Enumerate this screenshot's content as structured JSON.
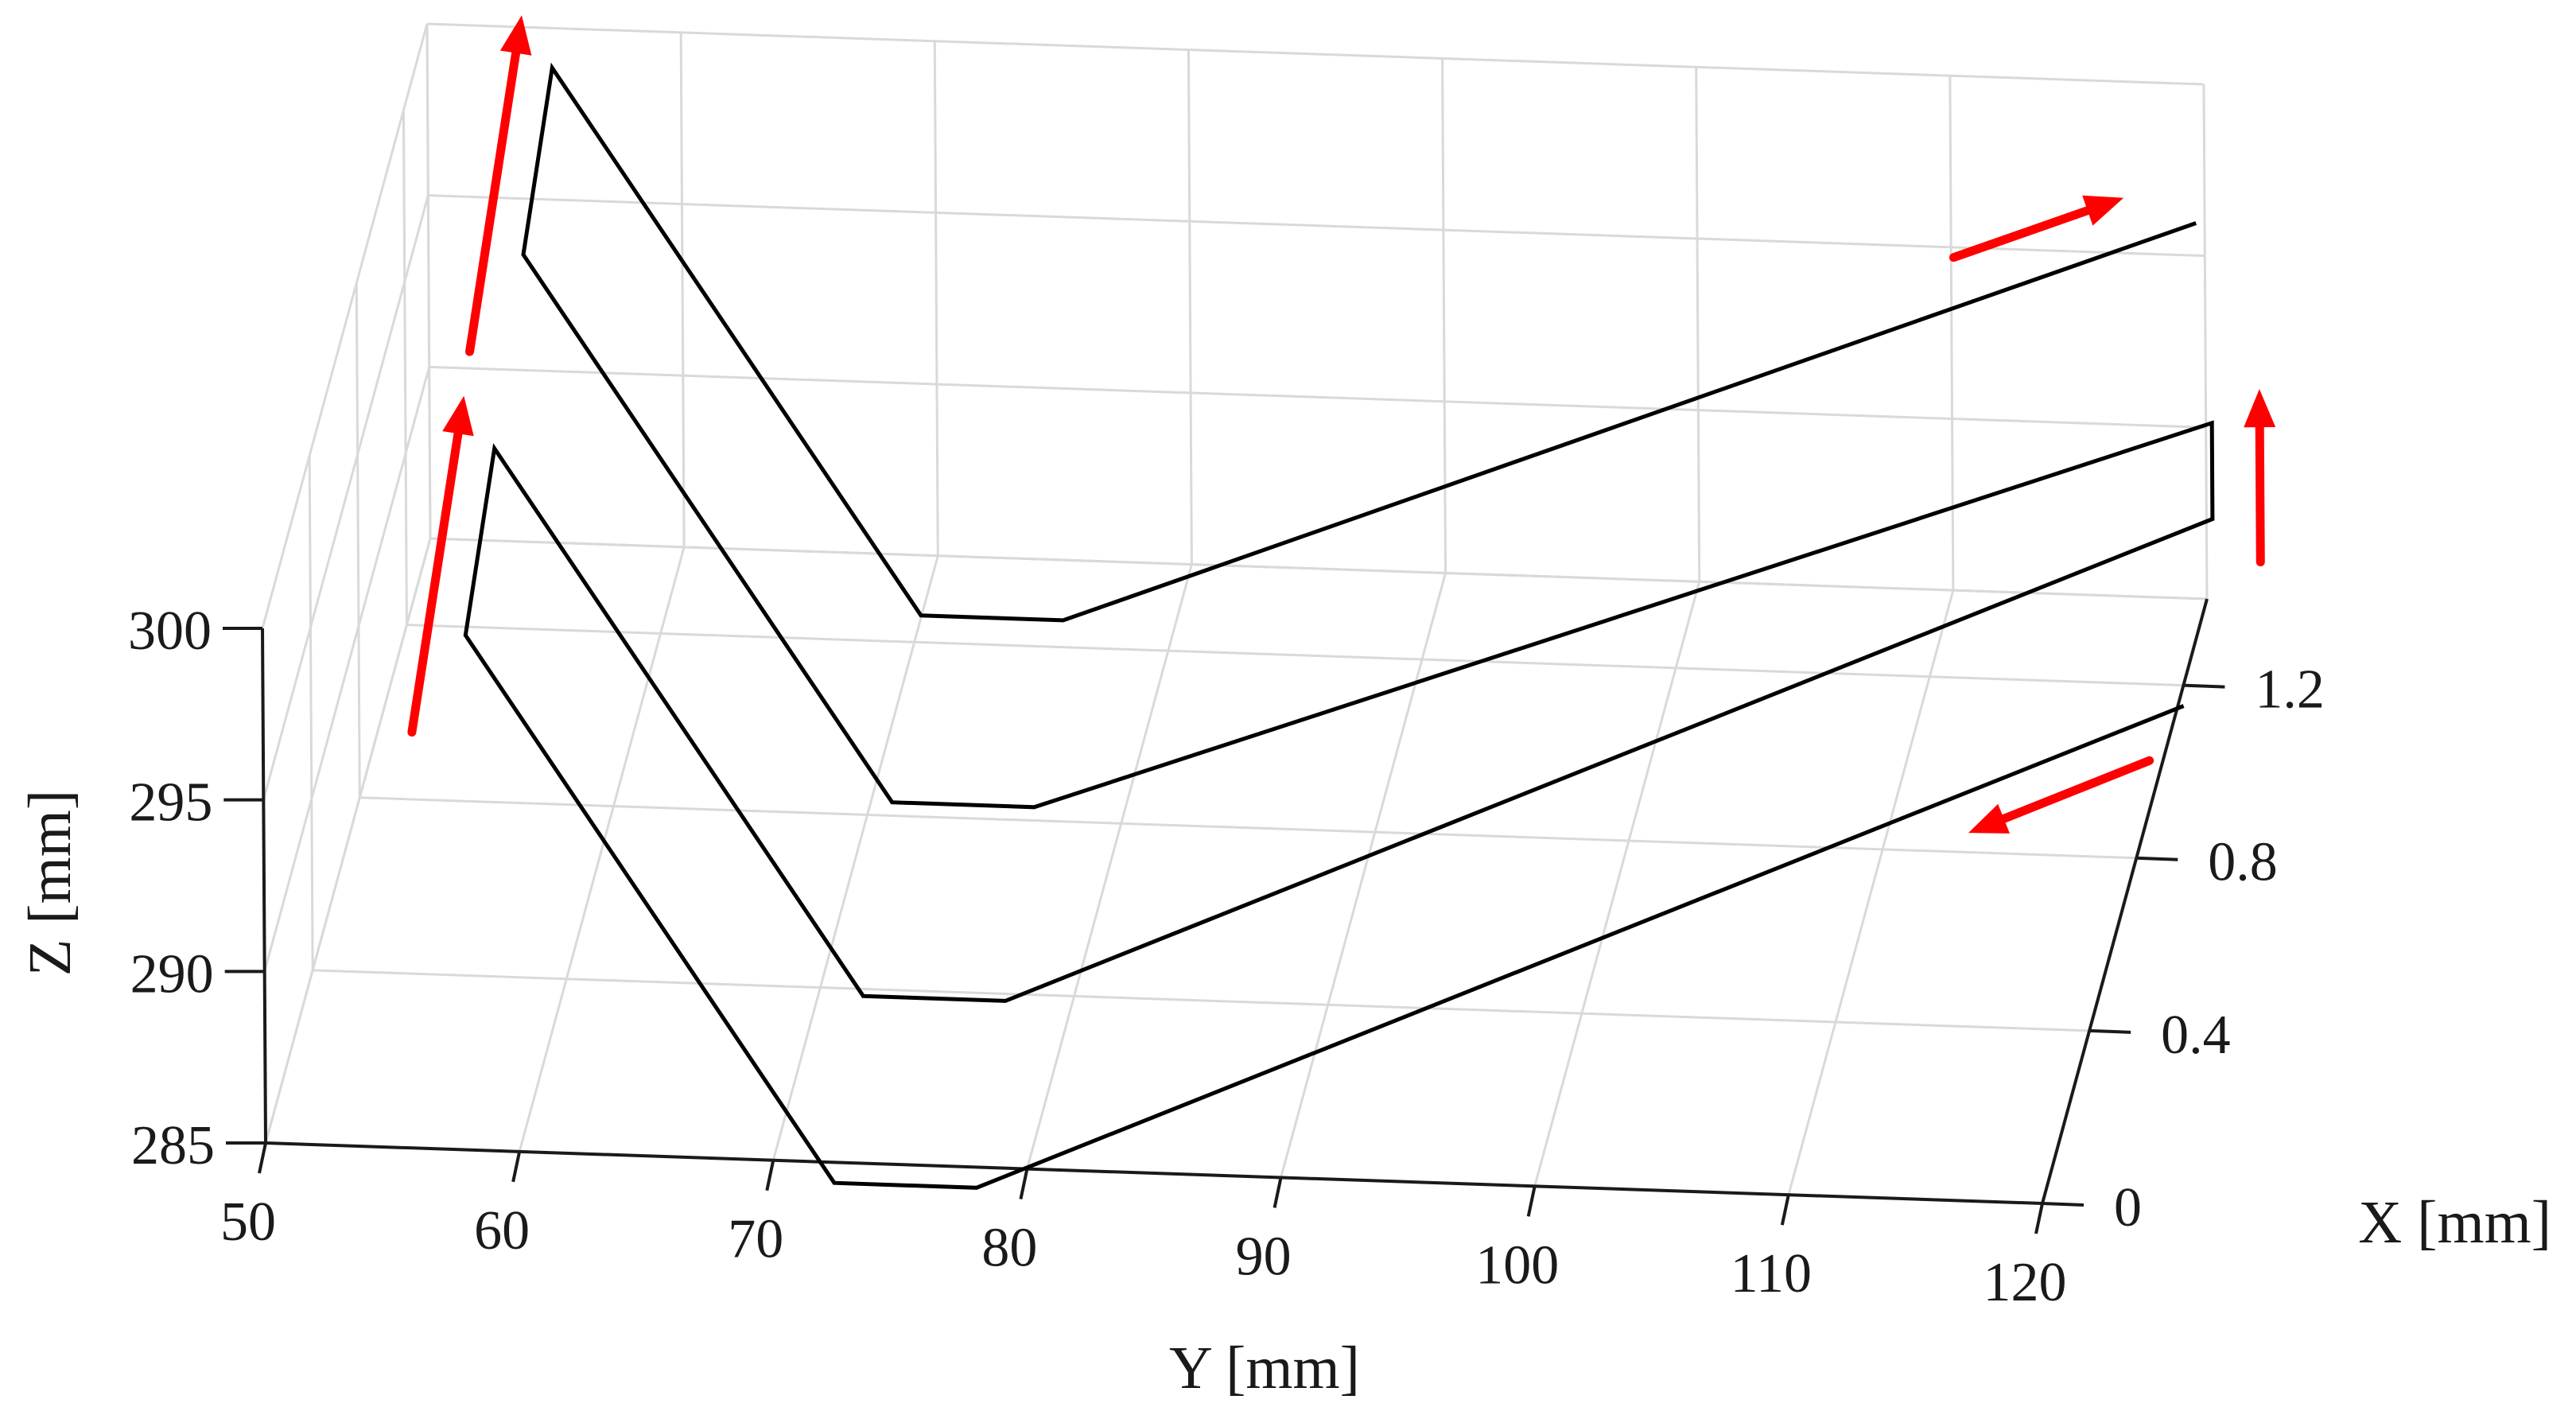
{
  "chart_data": {
    "type": "line",
    "subtype": "3d-toolpath",
    "title": "",
    "xlabel": "X [mm]",
    "ylabel": "Y [mm]",
    "zlabel": "Z [mm]",
    "xlim": [
      0,
      1.4
    ],
    "ylim": [
      50,
      120
    ],
    "zlim": [
      285,
      300
    ],
    "x_ticks": [
      "0",
      "0.4",
      "0.8",
      "1.2"
    ],
    "y_ticks": [
      "50",
      "60",
      "70",
      "80",
      "90",
      "100",
      "110",
      "120"
    ],
    "z_ticks": [
      "285",
      "290",
      "295",
      "300"
    ],
    "grid": true,
    "line_color": "#000000",
    "arrow_color": "#ff0000",
    "path": [
      {
        "x": 1.2,
        "y": 120,
        "z": 284.4
      },
      {
        "x": 0,
        "y": 78,
        "z": 284.4
      },
      {
        "x": 0,
        "y": 72.4,
        "z": 284.4
      },
      {
        "x": 0,
        "y": 58,
        "z": 300
      },
      {
        "x": 0.25,
        "y": 58,
        "z": 302.3
      },
      {
        "x": 0.25,
        "y": 72.4,
        "z": 286.7
      },
      {
        "x": 0.25,
        "y": 78,
        "z": 286.7
      },
      {
        "x": 1.45,
        "y": 120,
        "z": 286.7
      },
      {
        "x": 1.45,
        "y": 120,
        "z": 289.5
      },
      {
        "x": 0.5,
        "y": 78,
        "z": 289.2
      },
      {
        "x": 0.5,
        "y": 72.4,
        "z": 289.2
      },
      {
        "x": 0.5,
        "y": 58,
        "z": 304.8
      },
      {
        "x": 0.75,
        "y": 58,
        "z": 307.1
      },
      {
        "x": 0.75,
        "y": 72.4,
        "z": 291.5
      },
      {
        "x": 0.75,
        "y": 78,
        "z": 291.5
      },
      {
        "x": 1.75,
        "y": 118,
        "z": 291.5
      }
    ]
  }
}
